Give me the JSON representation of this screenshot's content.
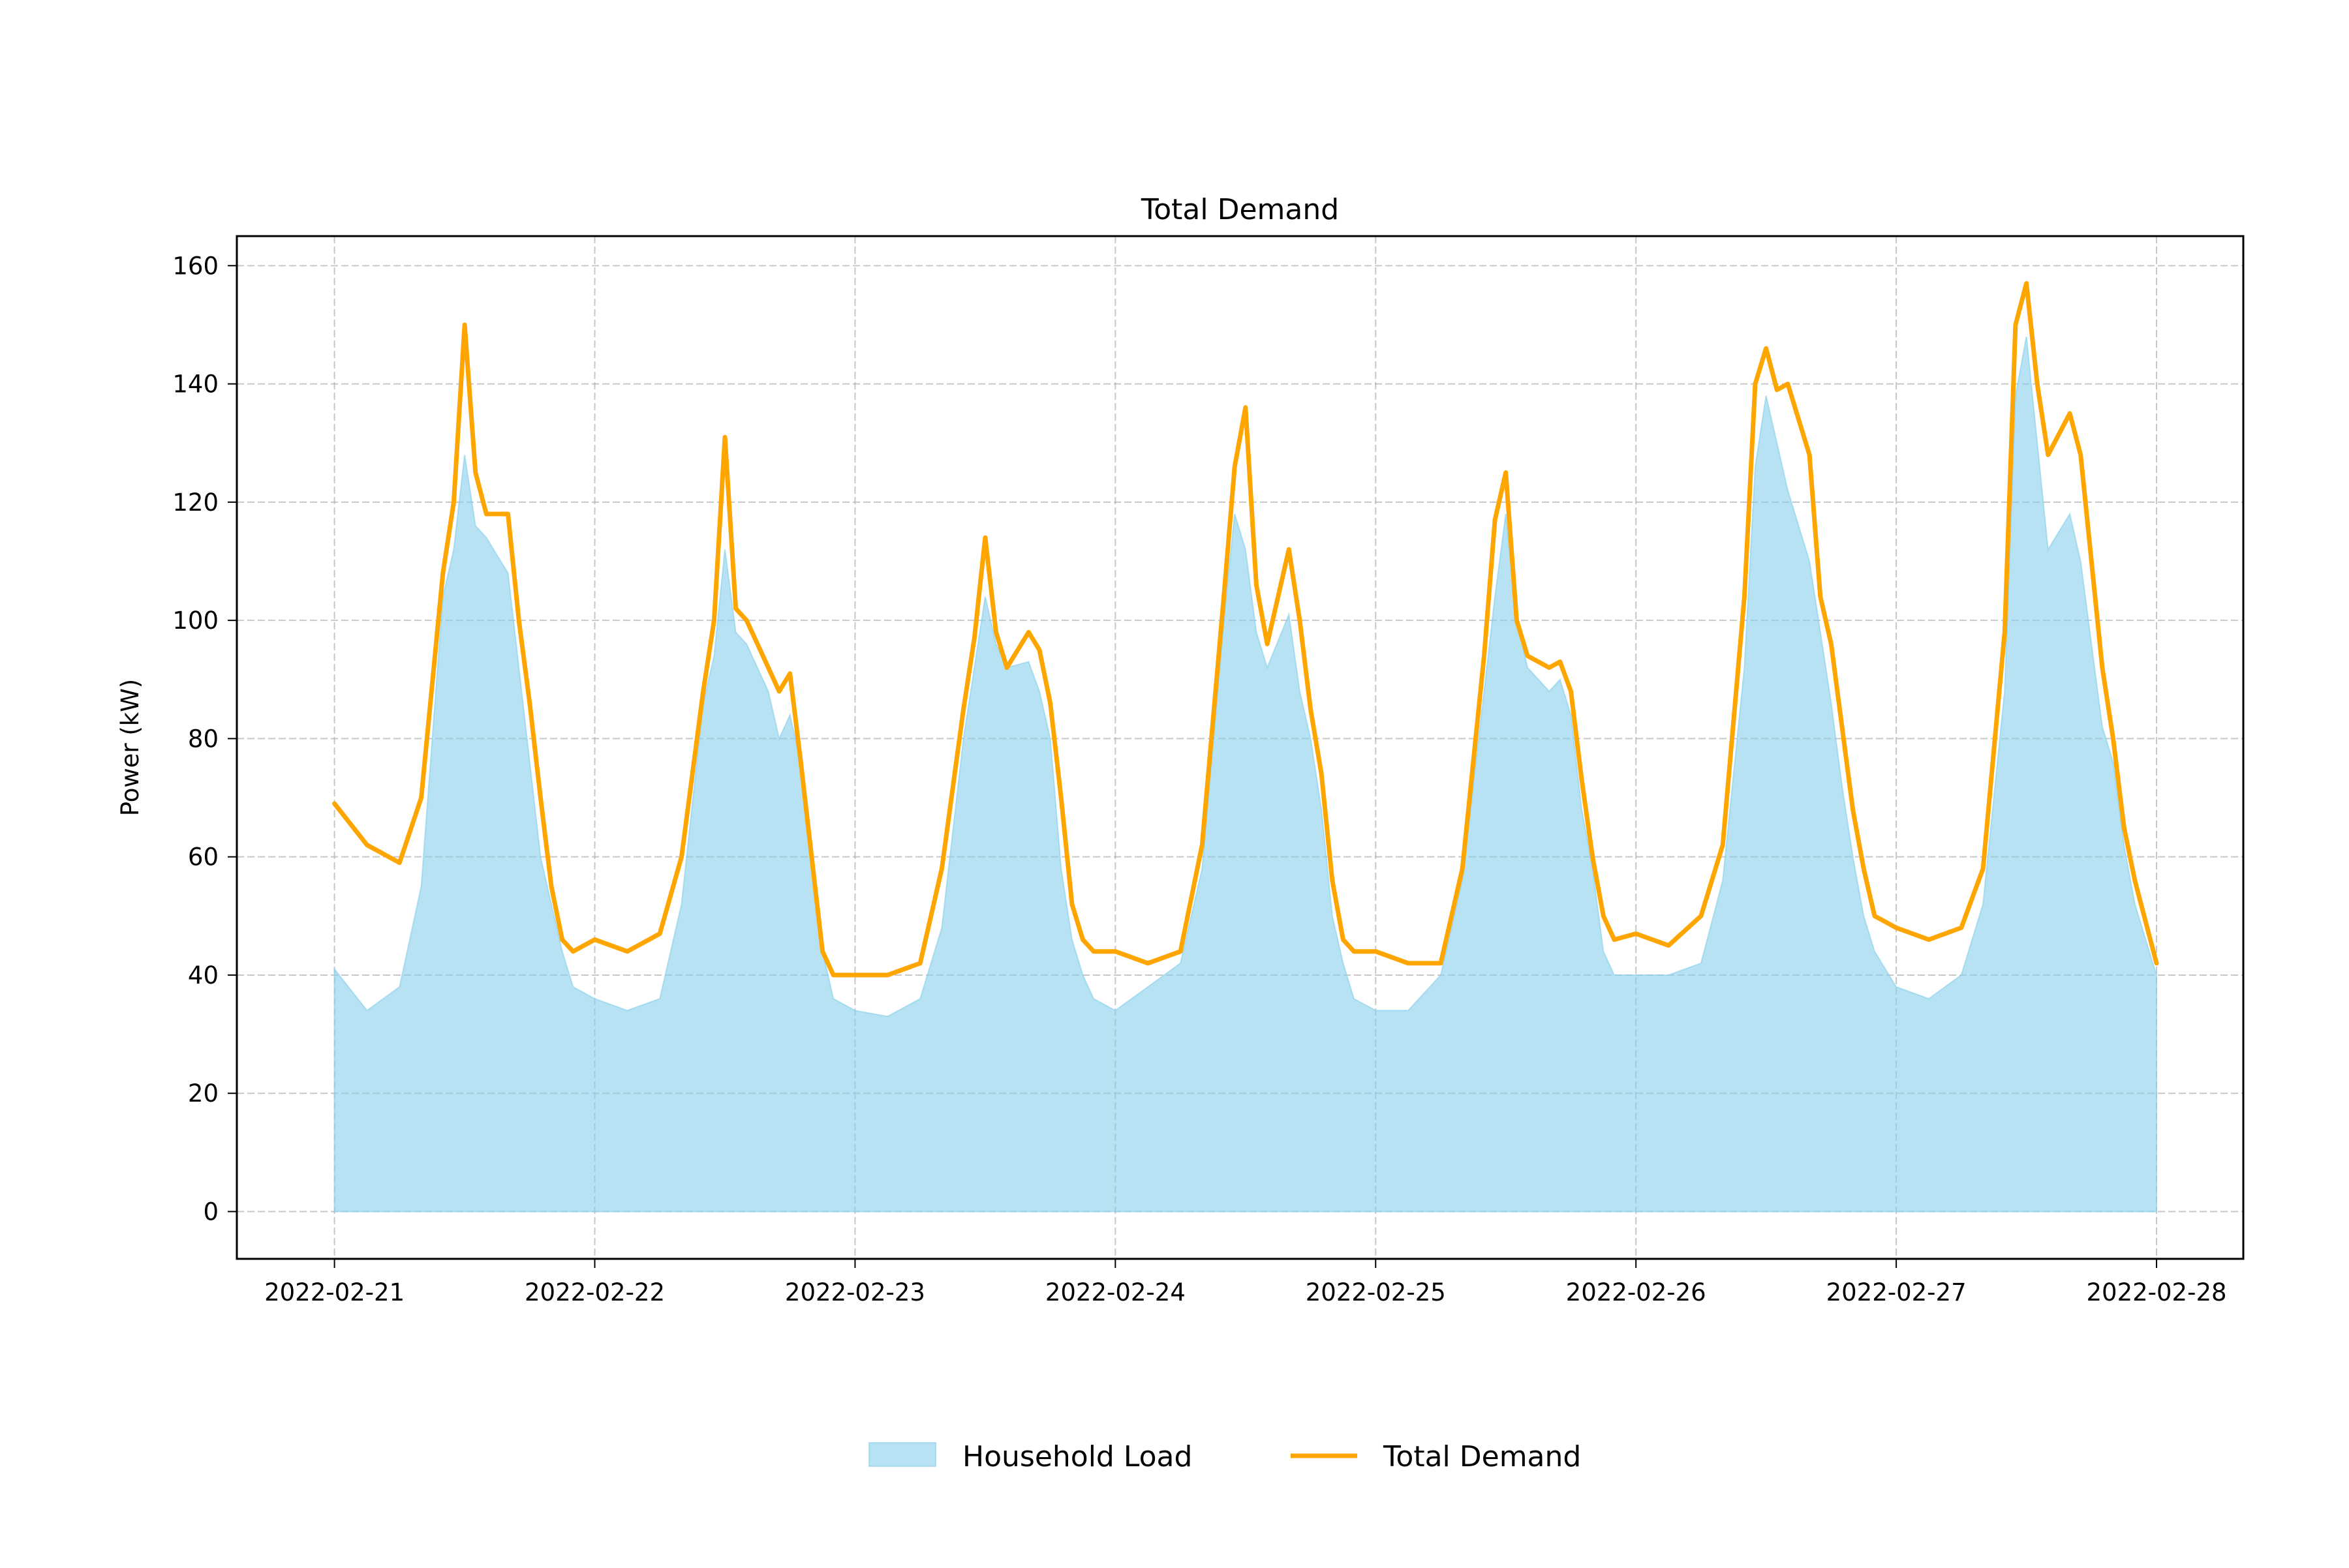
{
  "chart_data": {
    "type": "area",
    "title": "Total Demand",
    "xlabel": "",
    "ylabel": "Power (kW)",
    "x_ticks": [
      "2022-02-21",
      "2022-02-22",
      "2022-02-23",
      "2022-02-24",
      "2022-02-25",
      "2022-02-26",
      "2022-02-27",
      "2022-02-28"
    ],
    "y_ticks": [
      0,
      20,
      40,
      60,
      80,
      100,
      120,
      140,
      160
    ],
    "xlim": [
      "2022-02-20 15:00",
      "2022-02-28 08:00"
    ],
    "ylim": [
      -8,
      165
    ],
    "grid": true,
    "legend_position": "bottom-center",
    "x_unit": "date-time (hourly samples)",
    "x": [
      "2022-02-21 00:00",
      "2022-02-21 03:00",
      "2022-02-21 06:00",
      "2022-02-21 08:00",
      "2022-02-21 10:00",
      "2022-02-21 11:00",
      "2022-02-21 12:00",
      "2022-02-21 13:00",
      "2022-02-21 14:00",
      "2022-02-21 16:00",
      "2022-02-21 17:00",
      "2022-02-21 18:00",
      "2022-02-21 19:00",
      "2022-02-21 20:00",
      "2022-02-21 21:00",
      "2022-02-21 22:00",
      "2022-02-22 00:00",
      "2022-02-22 03:00",
      "2022-02-22 06:00",
      "2022-02-22 08:00",
      "2022-02-22 10:00",
      "2022-02-22 11:00",
      "2022-02-22 12:00",
      "2022-02-22 13:00",
      "2022-02-22 14:00",
      "2022-02-22 16:00",
      "2022-02-22 17:00",
      "2022-02-22 18:00",
      "2022-02-22 19:00",
      "2022-02-22 20:00",
      "2022-02-22 21:00",
      "2022-02-22 22:00",
      "2022-02-23 00:00",
      "2022-02-23 03:00",
      "2022-02-23 06:00",
      "2022-02-23 08:00",
      "2022-02-23 10:00",
      "2022-02-23 11:00",
      "2022-02-23 12:00",
      "2022-02-23 13:00",
      "2022-02-23 14:00",
      "2022-02-23 16:00",
      "2022-02-23 17:00",
      "2022-02-23 18:00",
      "2022-02-23 19:00",
      "2022-02-23 20:00",
      "2022-02-23 21:00",
      "2022-02-23 22:00",
      "2022-02-24 00:00",
      "2022-02-24 03:00",
      "2022-02-24 06:00",
      "2022-02-24 08:00",
      "2022-02-24 10:00",
      "2022-02-24 11:00",
      "2022-02-24 12:00",
      "2022-02-24 13:00",
      "2022-02-24 14:00",
      "2022-02-24 16:00",
      "2022-02-24 17:00",
      "2022-02-24 18:00",
      "2022-02-24 19:00",
      "2022-02-24 20:00",
      "2022-02-24 21:00",
      "2022-02-24 22:00",
      "2022-02-25 00:00",
      "2022-02-25 03:00",
      "2022-02-25 06:00",
      "2022-02-25 08:00",
      "2022-02-25 10:00",
      "2022-02-25 11:00",
      "2022-02-25 12:00",
      "2022-02-25 13:00",
      "2022-02-25 14:00",
      "2022-02-25 16:00",
      "2022-02-25 17:00",
      "2022-02-25 18:00",
      "2022-02-25 19:00",
      "2022-02-25 20:00",
      "2022-02-25 21:00",
      "2022-02-25 22:00",
      "2022-02-26 00:00",
      "2022-02-26 03:00",
      "2022-02-26 06:00",
      "2022-02-26 08:00",
      "2022-02-26 10:00",
      "2022-02-26 11:00",
      "2022-02-26 12:00",
      "2022-02-26 13:00",
      "2022-02-26 14:00",
      "2022-02-26 16:00",
      "2022-02-26 17:00",
      "2022-02-26 18:00",
      "2022-02-26 19:00",
      "2022-02-26 20:00",
      "2022-02-26 21:00",
      "2022-02-26 22:00",
      "2022-02-27 00:00",
      "2022-02-27 03:00",
      "2022-02-27 06:00",
      "2022-02-27 08:00",
      "2022-02-27 10:00",
      "2022-02-27 11:00",
      "2022-02-27 12:00",
      "2022-02-27 13:00",
      "2022-02-27 14:00",
      "2022-02-27 16:00",
      "2022-02-27 17:00",
      "2022-02-27 18:00",
      "2022-02-27 19:00",
      "2022-02-27 20:00",
      "2022-02-27 21:00",
      "2022-02-27 22:00",
      "2022-02-28 00:00"
    ],
    "series": [
      {
        "name": "Household Load",
        "kind": "area",
        "color": "#87CEEB",
        "opacity": 0.6,
        "values": [
          41,
          34,
          38,
          55,
          104,
          112,
          128,
          116,
          114,
          108,
          92,
          76,
          60,
          52,
          44,
          38,
          36,
          34,
          36,
          52,
          86,
          94,
          112,
          98,
          96,
          88,
          80,
          84,
          76,
          58,
          44,
          36,
          34,
          33,
          36,
          48,
          80,
          92,
          104,
          96,
          92,
          93,
          88,
          80,
          58,
          46,
          40,
          36,
          34,
          38,
          42,
          58,
          100,
          118,
          112,
          98,
          92,
          101,
          88,
          80,
          68,
          50,
          42,
          36,
          34,
          34,
          40,
          56,
          88,
          104,
          118,
          100,
          92,
          88,
          90,
          84,
          68,
          58,
          44,
          40,
          40,
          40,
          42,
          56,
          92,
          126,
          138,
          130,
          122,
          110,
          98,
          86,
          72,
          60,
          50,
          44,
          38,
          36,
          40,
          52,
          88,
          138,
          148,
          130,
          112,
          118,
          110,
          96,
          82,
          76,
          62,
          52,
          40
        ]
      },
      {
        "name": "Total Demand",
        "kind": "line",
        "color": "#FFA500",
        "values": [
          69,
          62,
          59,
          70,
          108,
          120,
          150,
          125,
          118,
          118,
          100,
          86,
          70,
          55,
          46,
          44,
          46,
          44,
          47,
          60,
          88,
          100,
          131,
          102,
          100,
          92,
          88,
          91,
          76,
          60,
          44,
          40,
          40,
          40,
          42,
          58,
          85,
          97,
          114,
          98,
          92,
          98,
          95,
          86,
          70,
          52,
          46,
          44,
          44,
          42,
          44,
          62,
          104,
          126,
          136,
          106,
          96,
          112,
          100,
          85,
          74,
          56,
          46,
          44,
          44,
          42,
          42,
          58,
          94,
          117,
          125,
          100,
          94,
          92,
          93,
          88,
          73,
          60,
          50,
          46,
          47,
          45,
          50,
          62,
          104,
          140,
          146,
          139,
          140,
          128,
          104,
          96,
          82,
          68,
          58,
          50,
          48,
          46,
          48,
          58,
          98,
          150,
          157,
          140,
          128,
          135,
          128,
          110,
          92,
          80,
          65,
          56,
          42
        ]
      }
    ]
  }
}
